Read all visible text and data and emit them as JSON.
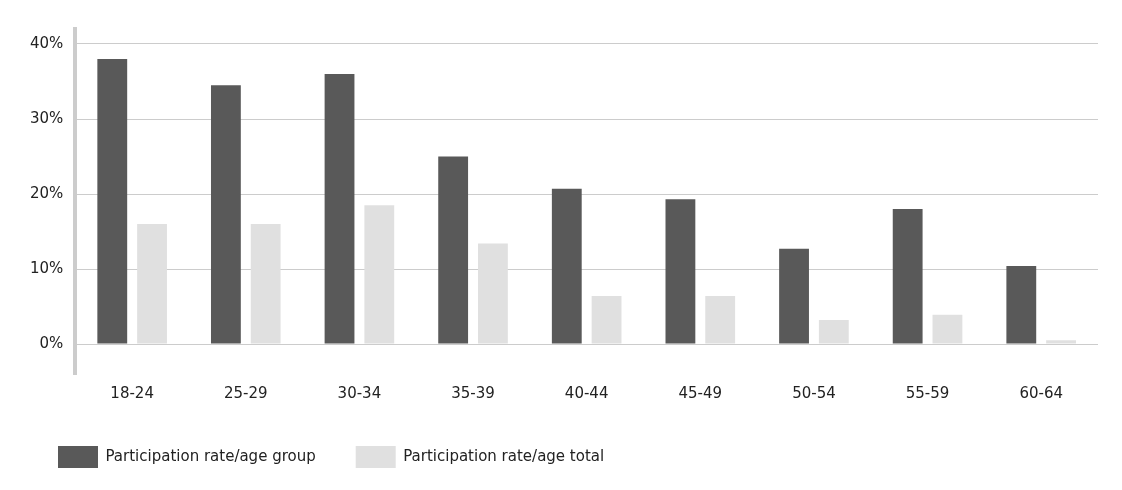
{
  "chart_data": {
    "type": "bar",
    "categories": [
      "18-24",
      "25-29",
      "30-34",
      "35-39",
      "40-44",
      "45-49",
      "50-54",
      "55-59",
      "60-64"
    ],
    "series": [
      {
        "name": "Participation rate/age group",
        "color": "#595959",
        "values": [
          38,
          34.5,
          36,
          25,
          20.7,
          19.3,
          12.7,
          18,
          10.4
        ]
      },
      {
        "name": "Participation rate/age total",
        "color": "#e0e0e0",
        "values": [
          16,
          16,
          18.5,
          13.4,
          6.4,
          6.4,
          3.2,
          3.9,
          0.5
        ]
      }
    ],
    "ylim": [
      -4,
      42
    ],
    "yticks": [
      {
        "value": 0,
        "label": "0%"
      },
      {
        "value": 10,
        "label": "10%"
      },
      {
        "value": 20,
        "label": "20%"
      },
      {
        "value": 30,
        "label": "30%"
      },
      {
        "value": 40,
        "label": "40%"
      }
    ],
    "grid": "y",
    "legend": "bottom left"
  }
}
